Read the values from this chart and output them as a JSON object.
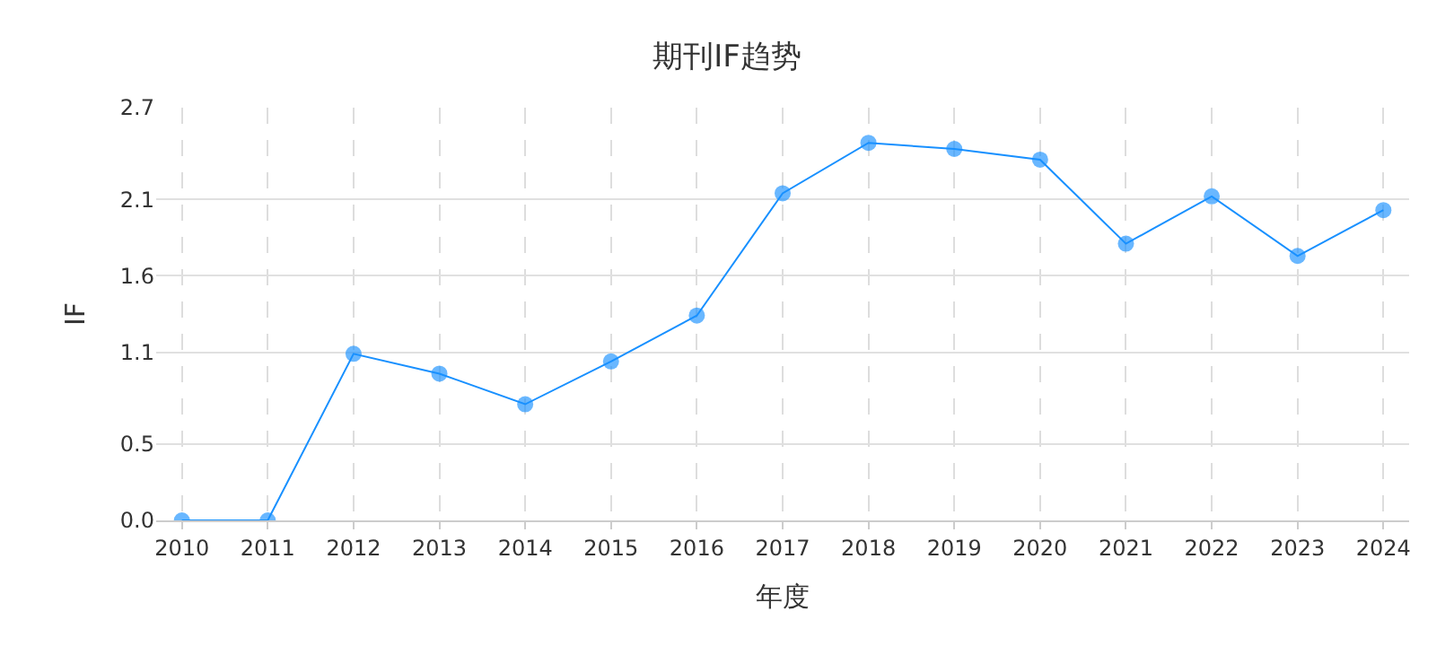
{
  "chart_data": {
    "type": "line",
    "title": "期刊IF趋势",
    "xlabel": "年度",
    "ylabel": "IF",
    "categories": [
      "2010",
      "2011",
      "2012",
      "2013",
      "2014",
      "2015",
      "2016",
      "2017",
      "2018",
      "2019",
      "2020",
      "2021",
      "2022",
      "2023",
      "2024"
    ],
    "series": [
      {
        "color": "#1890ff",
        "values": [
          0,
          0,
          1.09,
          0.96,
          0.76,
          1.04,
          1.34,
          2.14,
          2.47,
          2.43,
          2.36,
          1.81,
          2.12,
          1.73,
          2.03
        ]
      }
    ],
    "ylim": [
      0,
      2.7
    ],
    "yticks": [
      {
        "value": 0,
        "label": "0.0"
      },
      0.5,
      1.1,
      1.6,
      2.1,
      2.7
    ],
    "grid": true,
    "marker": "circle",
    "line_style": "solid"
  }
}
